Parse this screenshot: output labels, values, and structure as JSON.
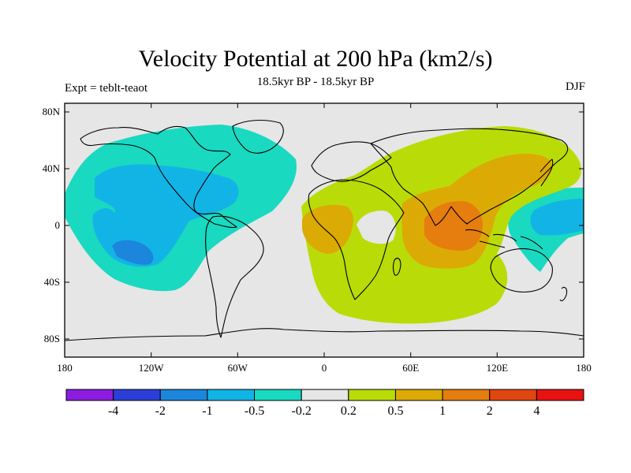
{
  "title": "Velocity Potential at 200 hPa (km2/s)",
  "left_string": "Expt = teblt-teaot",
  "center_string": "18.5kyr BP - 18.5kyr BP",
  "right_string": "DJF",
  "chart_data": {
    "type": "filled-contour-map",
    "variable": "Velocity Potential",
    "level": "200 hPa",
    "units": "km2/s",
    "season": "DJF",
    "x_ticks": [
      "180",
      "120W",
      "60W",
      "0",
      "60E",
      "120E",
      "180"
    ],
    "x_tick_values": [
      -180,
      -120,
      -60,
      0,
      60,
      120,
      180
    ],
    "y_ticks": [
      "80N",
      "40N",
      "0",
      "40S",
      "80S"
    ],
    "y_tick_values": [
      80,
      40,
      0,
      -40,
      -80
    ],
    "xlim": [
      -180,
      180
    ],
    "ylim": [
      -90,
      90
    ],
    "colorbar": {
      "labels": [
        "-4",
        "-2",
        "-1",
        "-0.5",
        "-0.2",
        "0.2",
        "0.5",
        "1",
        "2",
        "4"
      ],
      "colors": [
        "#8c1de0",
        "#2b3fd8",
        "#1b86dc",
        "#12b4e6",
        "#19d9c0",
        "#e6e6e6",
        "#b9dc08",
        "#dcaa05",
        "#e67d0f",
        "#e0460f",
        "#e81212"
      ]
    },
    "features": [
      {
        "name": "positive centre over Indian Ocean / Maritime Continent",
        "lon": 90,
        "lat": 0,
        "max_band": "1 to 2"
      },
      {
        "name": "positive lobe over western Africa",
        "lon": 10,
        "lat": 5,
        "max_band": "0.5 to 1"
      },
      {
        "name": "negative centre over east Pacific",
        "lon": -130,
        "lat": -20,
        "min_band": "-2 to -1"
      },
      {
        "name": "negative band over Central America / Caribbean",
        "lon": -80,
        "lat": 20,
        "min_band": "-1 to -0.5"
      },
      {
        "name": "negative lobe over west Pacific",
        "lon": 165,
        "lat": 5,
        "min_band": "-1 to -0.5"
      }
    ]
  }
}
